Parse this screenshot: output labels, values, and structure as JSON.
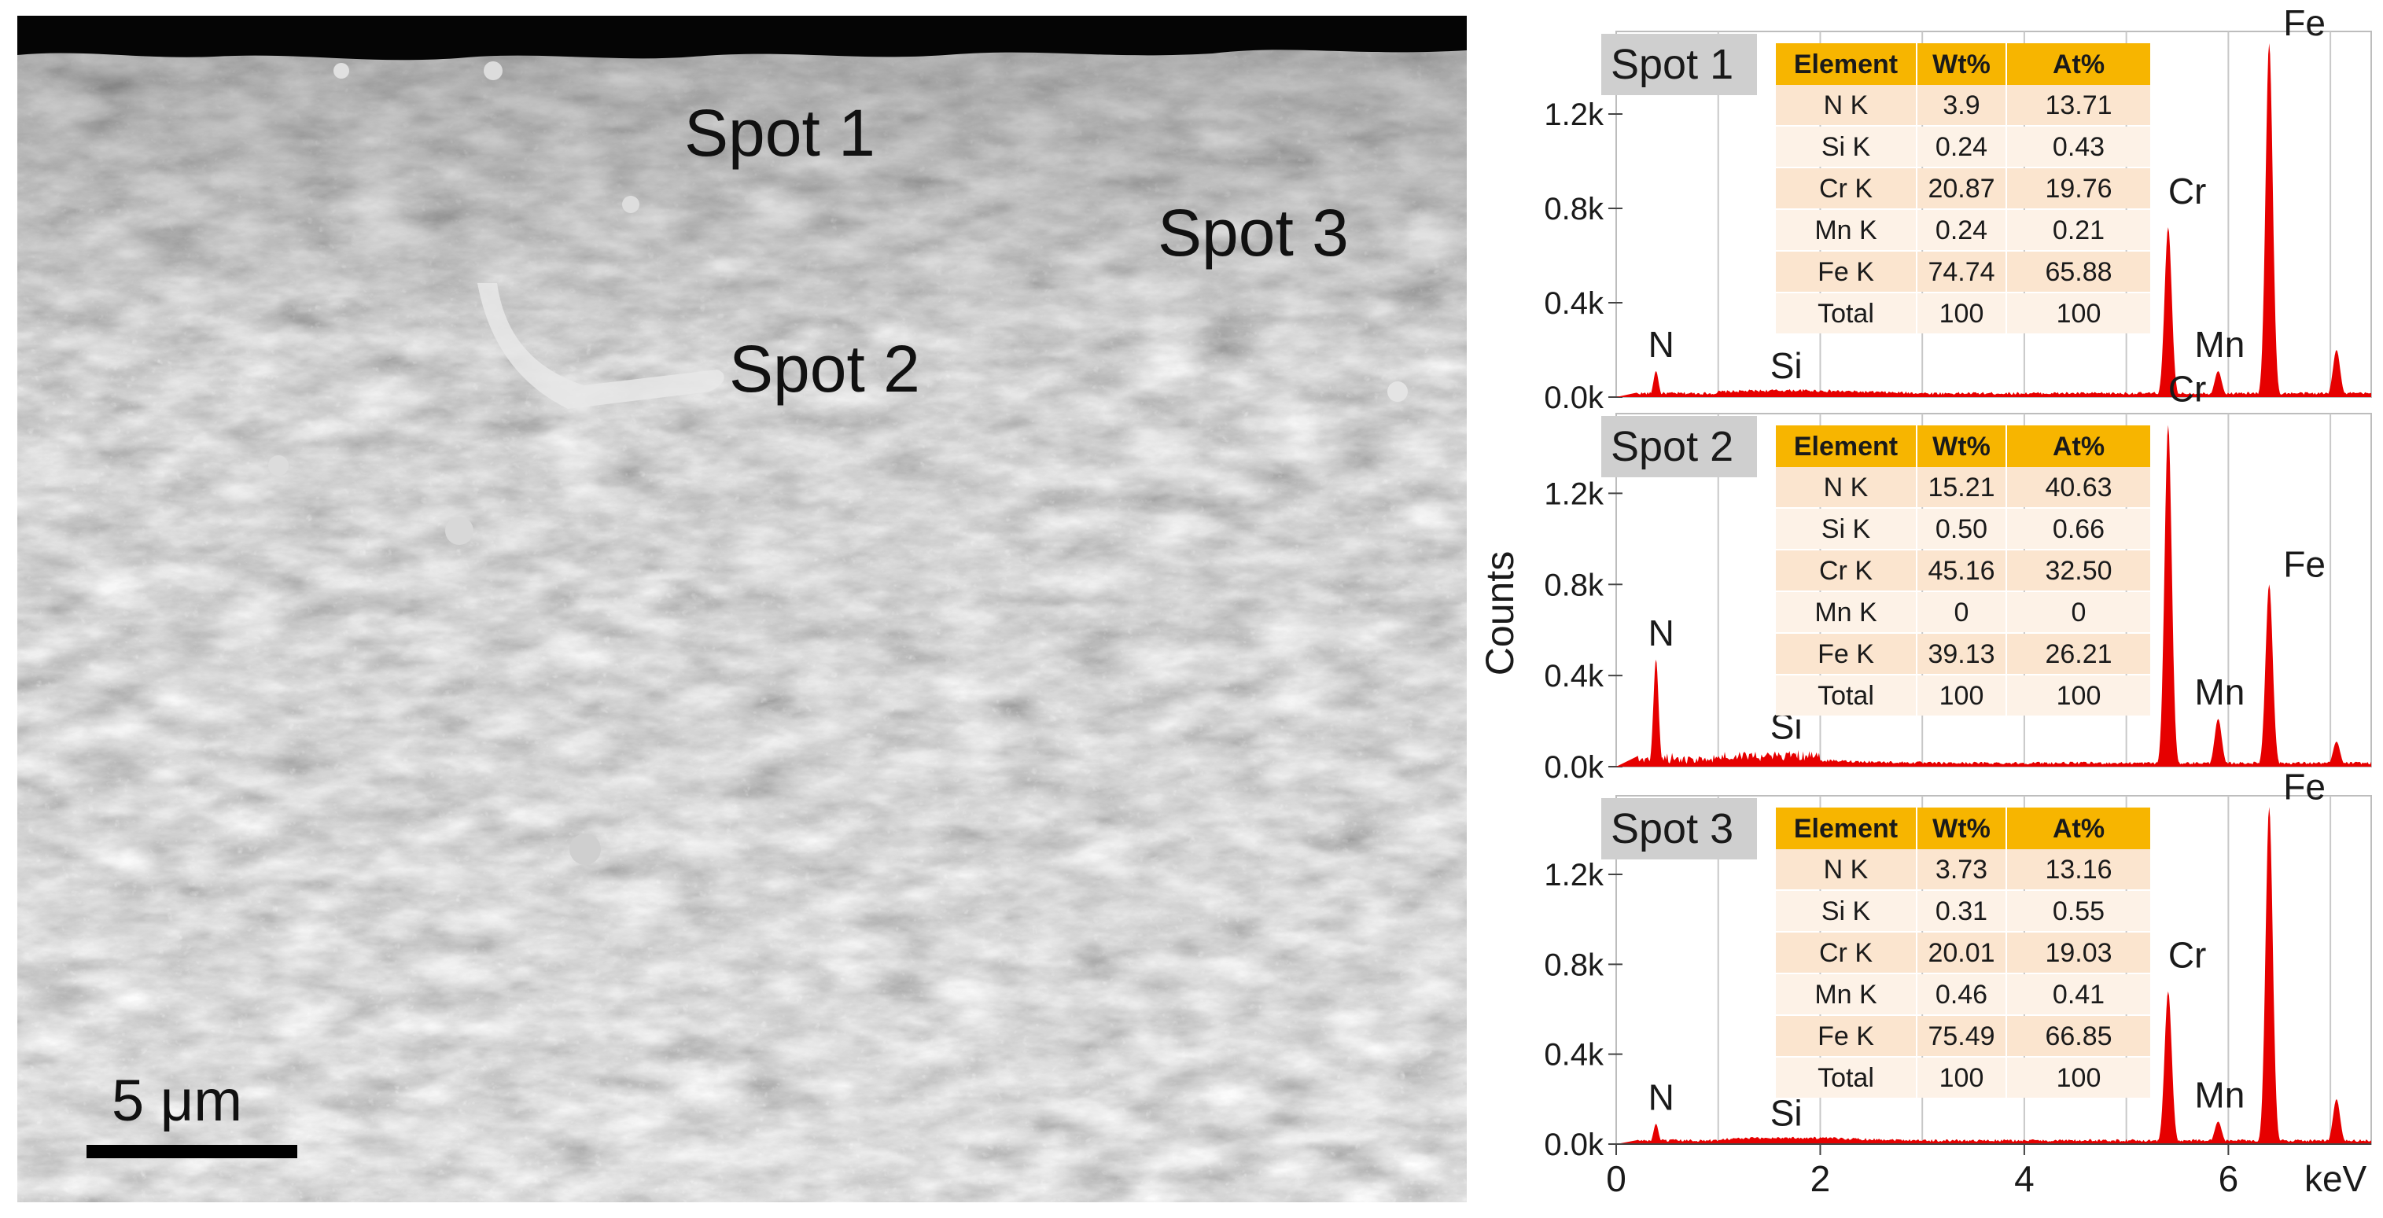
{
  "sem_image": {
    "spot_labels": [
      "Spot 1",
      "Spot 2",
      "Spot 3"
    ],
    "scale_bar": "5 μm"
  },
  "chart_data": {
    "type": "bar",
    "ylabel": "Counts",
    "x_unit": "keV",
    "x_ticks": [
      "0",
      "2",
      "4",
      "6"
    ],
    "y_ticks": [
      "0.0k",
      "0.4k",
      "0.8k",
      "1.2k"
    ],
    "ylim": [
      0,
      1.55
    ],
    "xlim": [
      0,
      7.4
    ],
    "grid": true,
    "colors": {
      "spectrum": "#e60000",
      "table_header": "#f7b500",
      "table_row_a": "#fbe5cf",
      "table_row_b": "#fdf2e7",
      "spot_tag": "#cfcfcf"
    },
    "table_header": [
      "Element",
      "Wt%",
      "At%"
    ],
    "panels": [
      {
        "spot": "Spot 1",
        "rows": [
          [
            "N K",
            "3.9",
            "13.71"
          ],
          [
            "Si K",
            "0.24",
            "0.43"
          ],
          [
            "Cr K",
            "20.87",
            "19.76"
          ],
          [
            "Mn K",
            "0.24",
            "0.21"
          ],
          [
            "Fe K",
            "74.74",
            "65.88"
          ],
          [
            "Total",
            "100",
            "100"
          ]
        ],
        "peaks": [
          {
            "element": "N",
            "x": 0.39,
            "y": 0.11
          },
          {
            "element": "Si",
            "x": 1.74,
            "y": 0.02
          },
          {
            "element": "Cr",
            "x": 5.41,
            "y": 0.72
          },
          {
            "element": "Mn",
            "x": 5.9,
            "y": 0.11
          },
          {
            "element": "Fe",
            "x": 6.4,
            "y": 1.5
          },
          {
            "element": "",
            "x": 7.06,
            "y": 0.2
          }
        ]
      },
      {
        "spot": "Spot 2",
        "rows": [
          [
            "N K",
            "15.21",
            "40.63"
          ],
          [
            "Si K",
            "0.50",
            "0.66"
          ],
          [
            "Cr K",
            "45.16",
            "32.50"
          ],
          [
            "Mn K",
            "0",
            "0"
          ],
          [
            "Fe K",
            "39.13",
            "26.21"
          ],
          [
            "Total",
            "100",
            "100"
          ]
        ],
        "peaks": [
          {
            "element": "N",
            "x": 0.39,
            "y": 0.47
          },
          {
            "element": "Si",
            "x": 1.74,
            "y": 0.06
          },
          {
            "element": "Cr",
            "x": 5.41,
            "y": 1.5
          },
          {
            "element": "Mn",
            "x": 5.9,
            "y": 0.21
          },
          {
            "element": "Fe",
            "x": 6.4,
            "y": 0.8
          },
          {
            "element": "",
            "x": 7.06,
            "y": 0.11
          }
        ]
      },
      {
        "spot": "Spot 3",
        "rows": [
          [
            "N K",
            "3.73",
            "13.16"
          ],
          [
            "Si K",
            "0.31",
            "0.55"
          ],
          [
            "Cr K",
            "20.01",
            "19.03"
          ],
          [
            "Mn K",
            "0.46",
            "0.41"
          ],
          [
            "Fe K",
            "75.49",
            "66.85"
          ],
          [
            "Total",
            "100",
            "100"
          ]
        ],
        "peaks": [
          {
            "element": "N",
            "x": 0.39,
            "y": 0.09
          },
          {
            "element": "Si",
            "x": 1.74,
            "y": 0.02
          },
          {
            "element": "Cr",
            "x": 5.41,
            "y": 0.68
          },
          {
            "element": "Mn",
            "x": 5.9,
            "y": 0.1
          },
          {
            "element": "Fe",
            "x": 6.4,
            "y": 1.5
          },
          {
            "element": "",
            "x": 7.06,
            "y": 0.2
          }
        ]
      }
    ]
  }
}
